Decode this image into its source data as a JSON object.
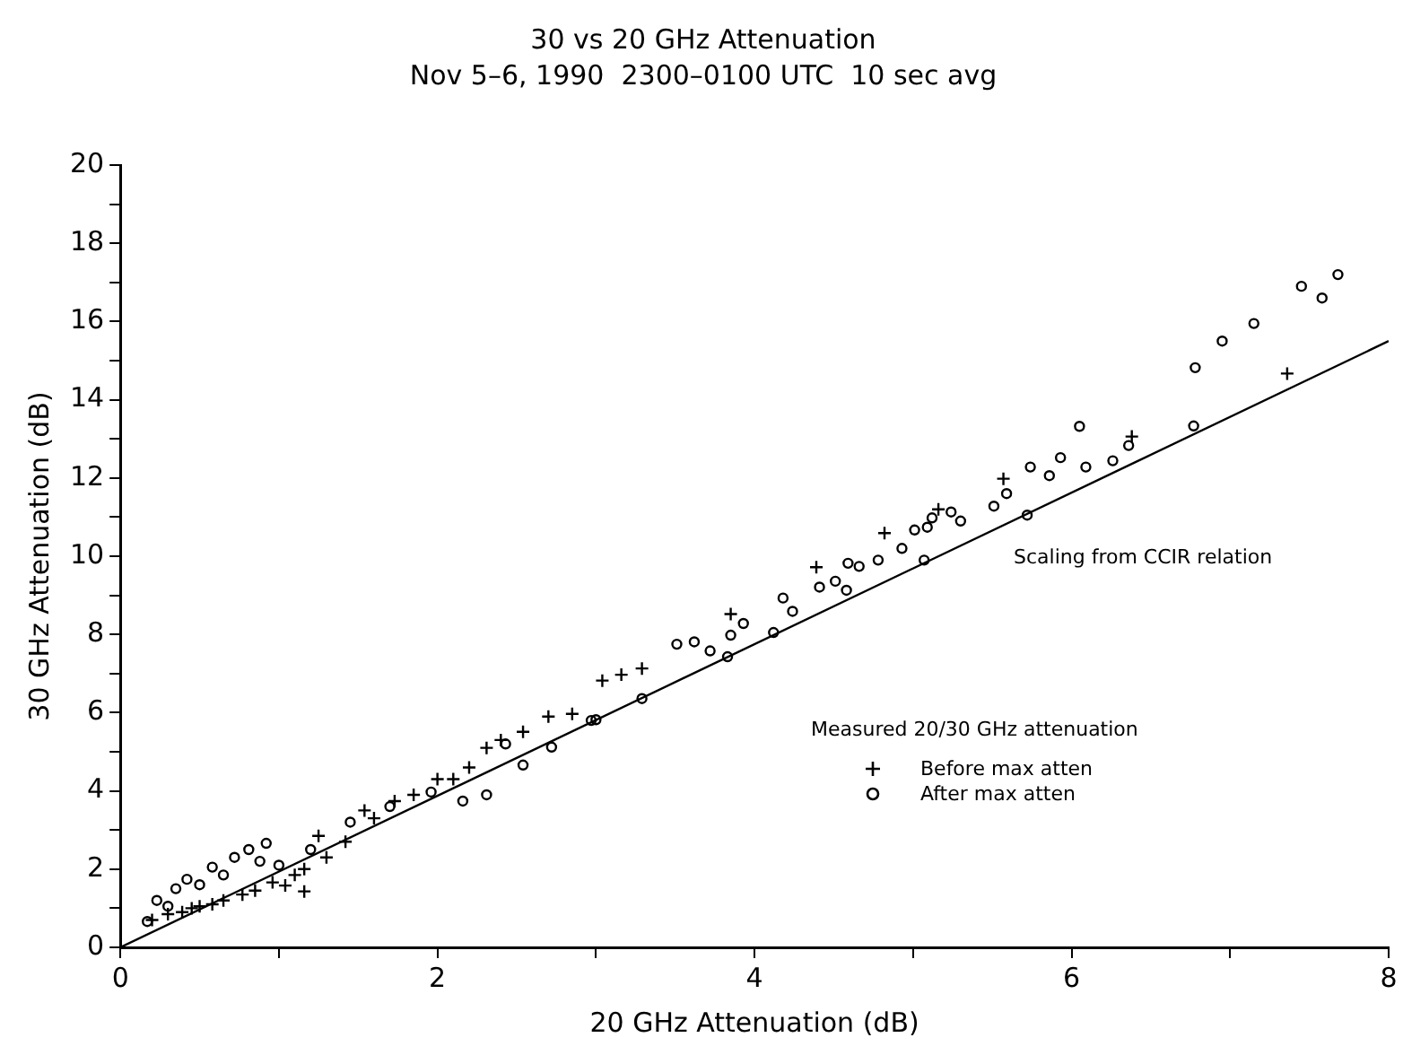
{
  "chart_data": {
    "type": "scatter",
    "title": "30 vs 20 GHz Attenuation",
    "subtitle": "Nov 5–6, 1990  2300–0100 UTC  10 sec avg",
    "xlabel": "20 GHz Attenuation (dB)",
    "ylabel": "30 GHz Attenuation (dB)",
    "legend_title": "Measured 20/30 GHz attenuation",
    "legend": "bottom right",
    "grid": false,
    "annotations": [
      "Scaling from CCIR relation"
    ],
    "xlim": [
      0,
      8
    ],
    "xticks": [
      0,
      {
        "value": 1,
        "label": null
      },
      2,
      {
        "value": 3,
        "label": null
      },
      4,
      {
        "value": 5,
        "label": null
      },
      6,
      {
        "value": 7,
        "label": null
      },
      8
    ],
    "ylim": [
      0,
      20
    ],
    "yticks": [
      0,
      {
        "value": 1,
        "label": null
      },
      2,
      {
        "value": 3,
        "label": null
      },
      4,
      {
        "value": 5,
        "label": null
      },
      6,
      {
        "value": 7,
        "label": null
      },
      8,
      {
        "value": 9,
        "label": null
      },
      10,
      {
        "value": 11,
        "label": null
      },
      12,
      {
        "value": 13,
        "label": null
      },
      14,
      {
        "value": 15,
        "label": null
      },
      16,
      {
        "value": 17,
        "label": null
      },
      18,
      {
        "value": 19,
        "label": null
      },
      20
    ],
    "series": [
      {
        "name": "Before max atten",
        "color": "#000000",
        "marker": "cross",
        "x": [
          0.2,
          0.3,
          0.39,
          0.45,
          0.5,
          0.58,
          0.65,
          0.77,
          0.85,
          0.96,
          1.04,
          1.16,
          1.1,
          1.16,
          1.25,
          1.3,
          1.42,
          1.54,
          1.6,
          1.73,
          1.85,
          2.0,
          2.1,
          2.2,
          2.31,
          2.4,
          2.54,
          2.7,
          2.85,
          3.04,
          3.16,
          3.29,
          3.85,
          4.39,
          4.82,
          5.16,
          5.57,
          6.38,
          7.36
        ],
        "values": [
          0.7,
          0.85,
          0.9,
          1.0,
          1.05,
          1.1,
          1.2,
          1.35,
          1.45,
          1.66,
          1.58,
          1.43,
          1.85,
          2.0,
          2.85,
          2.3,
          2.7,
          3.5,
          3.3,
          3.74,
          3.9,
          4.3,
          4.3,
          4.6,
          5.1,
          5.3,
          5.51,
          5.9,
          5.97,
          6.82,
          6.97,
          7.13,
          8.52,
          9.72,
          10.59,
          11.2,
          11.98,
          13.06,
          14.67
        ]
      },
      {
        "name": "After max atten",
        "color": "#000000",
        "marker": "circle",
        "x": [
          0.17,
          0.23,
          0.3,
          0.35,
          0.42,
          0.5,
          0.58,
          0.65,
          0.72,
          0.81,
          0.92,
          0.88,
          1.0,
          1.2,
          1.45,
          1.7,
          1.96,
          2.16,
          2.31,
          2.43,
          2.54,
          2.72,
          2.97,
          3.0,
          3.29,
          3.51,
          3.62,
          3.72,
          3.83,
          3.85,
          3.93,
          4.12,
          4.18,
          4.24,
          4.41,
          4.51,
          4.58,
          4.59,
          4.66,
          4.78,
          4.93,
          5.01,
          5.07,
          5.09,
          5.12,
          5.24,
          5.3,
          5.51,
          5.59,
          5.72,
          5.74,
          5.86,
          5.93,
          6.05,
          6.09,
          6.26,
          6.36,
          6.77,
          6.78,
          6.95,
          7.15,
          7.45,
          7.58,
          7.68
        ],
        "values": [
          0.66,
          1.2,
          1.05,
          1.5,
          1.74,
          1.6,
          2.05,
          1.85,
          2.3,
          2.5,
          2.66,
          2.2,
          2.1,
          2.5,
          3.2,
          3.6,
          3.97,
          3.74,
          3.9,
          5.2,
          4.66,
          5.12,
          5.8,
          5.82,
          6.36,
          7.75,
          7.81,
          7.58,
          7.43,
          7.98,
          8.28,
          8.05,
          8.93,
          8.59,
          9.21,
          9.36,
          9.13,
          9.82,
          9.74,
          9.9,
          10.2,
          10.67,
          9.9,
          10.74,
          10.98,
          11.13,
          10.9,
          11.28,
          11.6,
          11.05,
          12.28,
          12.06,
          12.52,
          13.32,
          12.28,
          12.44,
          12.83,
          13.33,
          14.82,
          15.5,
          15.95,
          16.9,
          16.6,
          17.2
        ]
      },
      {
        "type": "line",
        "color": "#000000",
        "marker": "none",
        "line_style": "solid",
        "x": [
          0,
          8
        ],
        "values": [
          0,
          15.5
        ]
      }
    ]
  }
}
